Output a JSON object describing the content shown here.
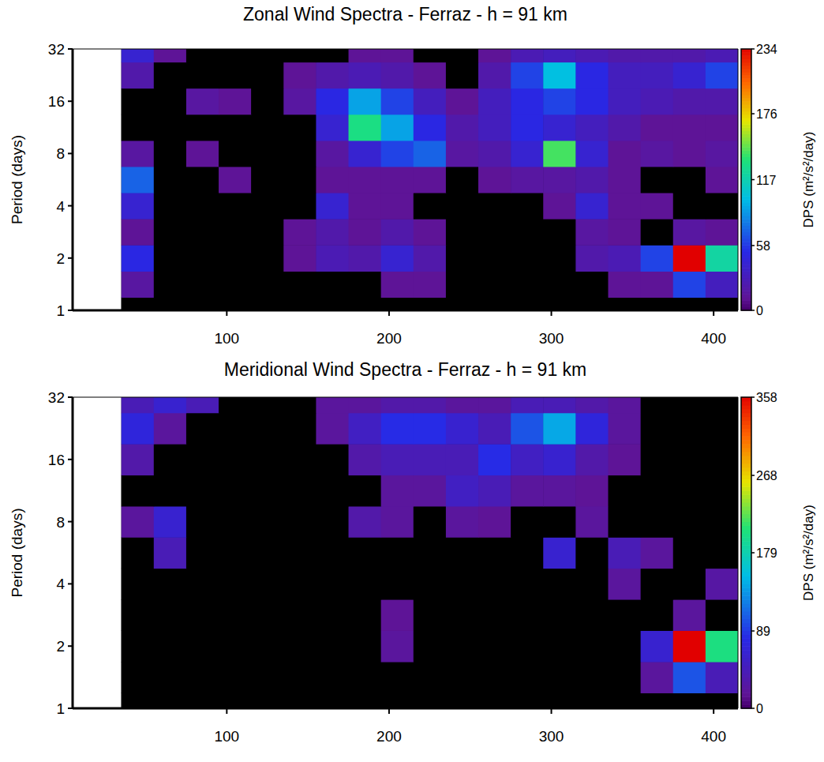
{
  "chart_data": [
    {
      "type": "heatmap",
      "title": "Zonal Wind Spectra - Ferraz -  h = 91 km",
      "y_label": "Period (days)",
      "log": "y",
      "x": [
        45,
        65,
        85,
        105,
        125,
        145,
        165,
        185,
        205,
        225,
        245,
        265,
        285,
        305,
        325,
        345,
        365,
        385,
        405
      ],
      "y": [
        1,
        1.41,
        2,
        2.83,
        4,
        5.66,
        8,
        11.3,
        16,
        22.6,
        32
      ],
      "values": [
        [
          0,
          0,
          0,
          0,
          0,
          0,
          0,
          0,
          0,
          0,
          0,
          0,
          0,
          0,
          0,
          0,
          0,
          0,
          0
        ],
        [
          15,
          0,
          0,
          0,
          0,
          0,
          5,
          5,
          10,
          10,
          0,
          0,
          0,
          0,
          5,
          10,
          10,
          60,
          30
        ],
        [
          50,
          0,
          0,
          0,
          0,
          10,
          25,
          20,
          40,
          20,
          5,
          0,
          0,
          0,
          20,
          25,
          60,
          234,
          120
        ],
        [
          10,
          0,
          0,
          0,
          0,
          10,
          20,
          10,
          20,
          10,
          5,
          0,
          0,
          5,
          15,
          10,
          5,
          15,
          10
        ],
        [
          40,
          0,
          0,
          0,
          0,
          0,
          40,
          10,
          10,
          5,
          0,
          5,
          5,
          10,
          40,
          10,
          10,
          5,
          5
        ],
        [
          70,
          0,
          5,
          10,
          0,
          0,
          10,
          10,
          10,
          10,
          5,
          10,
          15,
          15,
          20,
          10,
          5,
          5,
          10
        ],
        [
          15,
          0,
          10,
          5,
          0,
          0,
          15,
          40,
          60,
          70,
          15,
          20,
          40,
          140,
          40,
          10,
          15,
          10,
          15
        ],
        [
          5,
          0,
          5,
          0,
          0,
          5,
          40,
          130,
          90,
          50,
          20,
          30,
          50,
          40,
          30,
          20,
          10,
          10,
          10
        ],
        [
          5,
          0,
          15,
          10,
          0,
          15,
          50,
          90,
          60,
          30,
          10,
          30,
          50,
          60,
          50,
          30,
          25,
          20,
          20
        ],
        [
          20,
          5,
          0,
          0,
          0,
          10,
          20,
          25,
          20,
          10,
          5,
          20,
          60,
          100,
          50,
          30,
          30,
          40,
          60
        ],
        [
          40,
          10,
          0,
          0,
          0,
          0,
          5,
          10,
          10,
          5,
          0,
          10,
          25,
          30,
          25,
          20,
          20,
          20,
          25
        ]
      ],
      "xlim": [
        5,
        415
      ],
      "xticks": [
        100,
        200,
        300,
        400
      ],
      "ylim": [
        1,
        32
      ],
      "yticks": [
        1,
        2,
        4,
        8,
        16,
        32
      ],
      "colorbar_label": "DPS  (m²/s²/day)",
      "colorbar_range": [
        0,
        234
      ],
      "colorbar_ticks": [
        0,
        58,
        117,
        176,
        234
      ]
    },
    {
      "type": "heatmap",
      "title": "Meridional Wind Spectra - Ferraz -  h = 91 km",
      "y_label": "Period (days)",
      "log": "y",
      "x": [
        45,
        65,
        85,
        105,
        125,
        145,
        165,
        185,
        205,
        225,
        245,
        265,
        285,
        305,
        325,
        345,
        365,
        385,
        405
      ],
      "y": [
        1,
        1.41,
        2,
        2.83,
        4,
        5.66,
        8,
        11.3,
        16,
        22.6,
        32
      ],
      "values": [
        [
          0,
          0,
          0,
          0,
          0,
          0,
          0,
          0,
          0,
          0,
          0,
          0,
          0,
          0,
          0,
          0,
          0,
          0,
          0
        ],
        [
          0,
          0,
          0,
          0,
          0,
          0,
          0,
          10,
          5,
          0,
          0,
          0,
          0,
          0,
          0,
          5,
          20,
          100,
          40
        ],
        [
          0,
          0,
          0,
          0,
          5,
          0,
          0,
          0,
          20,
          10,
          5,
          0,
          0,
          0,
          0,
          10,
          60,
          358,
          200
        ],
        [
          0,
          0,
          0,
          0,
          0,
          0,
          0,
          0,
          15,
          10,
          5,
          0,
          0,
          0,
          10,
          5,
          10,
          20,
          5
        ],
        [
          0,
          0,
          0,
          0,
          0,
          0,
          0,
          10,
          10,
          10,
          0,
          0,
          0,
          10,
          0,
          20,
          10,
          5,
          25
        ],
        [
          10,
          40,
          0,
          0,
          0,
          0,
          0,
          10,
          10,
          10,
          0,
          0,
          5,
          60,
          5,
          40,
          20,
          5,
          0
        ],
        [
          20,
          60,
          0,
          0,
          0,
          0,
          5,
          30,
          20,
          10,
          20,
          15,
          10,
          10,
          20,
          10,
          0,
          0,
          0
        ],
        [
          5,
          0,
          0,
          0,
          0,
          0,
          5,
          10,
          20,
          20,
          50,
          40,
          20,
          20,
          15,
          10,
          0,
          0,
          0
        ],
        [
          30,
          5,
          0,
          0,
          0,
          5,
          10,
          30,
          40,
          40,
          40,
          80,
          50,
          60,
          30,
          15,
          5,
          0,
          0
        ],
        [
          70,
          20,
          10,
          5,
          5,
          10,
          20,
          50,
          80,
          80,
          60,
          40,
          100,
          140,
          70,
          20,
          10,
          5,
          5
        ],
        [
          40,
          60,
          40,
          10,
          5,
          10,
          20,
          20,
          30,
          30,
          20,
          20,
          40,
          40,
          30,
          20,
          10,
          5,
          5
        ]
      ],
      "xlim": [
        5,
        415
      ],
      "xticks": [
        100,
        200,
        300,
        400
      ],
      "ylim": [
        1,
        32
      ],
      "yticks": [
        1,
        2,
        4,
        8,
        16,
        32
      ],
      "colorbar_label": "DPS  (m²/s²/day)",
      "colorbar_range": [
        0,
        358
      ],
      "colorbar_ticks": [
        0,
        89,
        179,
        268,
        358
      ]
    }
  ]
}
